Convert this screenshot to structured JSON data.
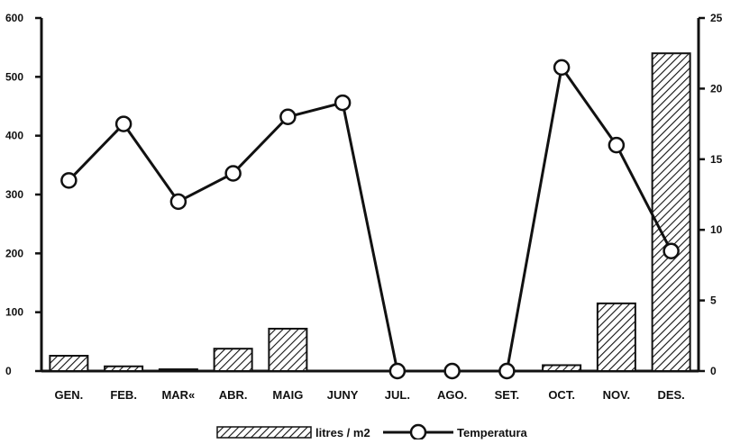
{
  "chart_data": {
    "type": "bar",
    "categories": [
      "GEN.",
      "FEB.",
      "MAR«",
      "ABR.",
      "MAIG",
      "JUNY",
      "JUL.",
      "AGO.",
      "SET.",
      "OCT.",
      "NOV.",
      "DES."
    ],
    "series": [
      {
        "name": "litres / m2",
        "type": "bar",
        "axis": "left",
        "values": [
          26,
          8,
          3,
          38,
          72,
          0,
          0,
          0,
          0,
          10,
          115,
          540
        ]
      },
      {
        "name": "Temperatura",
        "type": "line",
        "axis": "right",
        "values": [
          13.5,
          17.5,
          12,
          14,
          18,
          19,
          0,
          0,
          0,
          21.5,
          16,
          8.5
        ]
      }
    ],
    "left_axis": {
      "ylim": [
        0,
        600
      ],
      "ticks": [
        "0",
        "100",
        "200",
        "300",
        "400",
        "500",
        "600"
      ]
    },
    "right_axis": {
      "ylim": [
        0,
        25
      ],
      "ticks": [
        "0",
        "5",
        "10",
        "15",
        "20",
        "25"
      ]
    },
    "grid": false,
    "legend_position": "bottom-center"
  },
  "colors": {
    "ink": "#111111",
    "background": "#ffffff"
  }
}
